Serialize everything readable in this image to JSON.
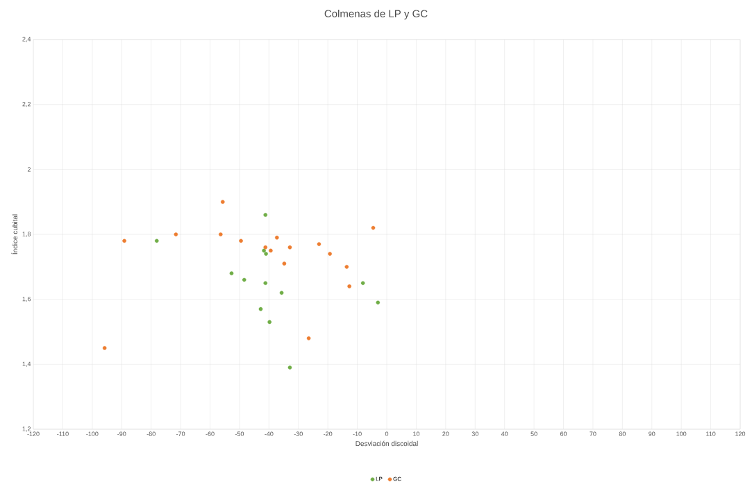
{
  "chart_data": {
    "type": "scatter",
    "title": "Colmenas de LP y GC",
    "xlabel": "Desviación discoidal",
    "ylabel": "Índice cubital",
    "xlim": [
      -120,
      120
    ],
    "ylim": [
      1.2,
      2.4
    ],
    "xticks": [
      -120,
      -110,
      -100,
      -90,
      -80,
      -70,
      -60,
      -50,
      -40,
      -30,
      -20,
      -10,
      0,
      10,
      20,
      30,
      40,
      50,
      60,
      70,
      80,
      90,
      100,
      110,
      120
    ],
    "yticks": [
      {
        "value": 1.2,
        "label": "1,2"
      },
      {
        "value": 1.4,
        "label": "1,4"
      },
      {
        "value": 1.6,
        "label": "1,6"
      },
      {
        "value": 1.8,
        "label": "1,8"
      },
      {
        "value": 2,
        "label": "2"
      },
      {
        "value": 2.2,
        "label": "2,2"
      },
      {
        "value": 2.4,
        "label": "2,4"
      }
    ],
    "grid": true,
    "legend": "bottom",
    "marker": "circle",
    "series": [
      {
        "name": "LP",
        "color": "#70ad47",
        "x": [
          -78.1,
          -41.2,
          -41.7,
          -41.0,
          -52.7,
          -48.4,
          -41.2,
          -35.7,
          -42.8,
          -39.8,
          -32.9,
          -8.1,
          -3.0
        ],
        "values": [
          1.78,
          1.86,
          1.75,
          1.74,
          1.68,
          1.66,
          1.65,
          1.62,
          1.57,
          1.53,
          1.39,
          1.65,
          1.59
        ]
      },
      {
        "name": "GC",
        "color": "#ed7d31",
        "x": [
          -55.7,
          -89.1,
          -71.6,
          -56.4,
          -49.5,
          -41.2,
          -39.4,
          -37.3,
          -32.9,
          -34.8,
          -23.0,
          -19.3,
          -13.6,
          -12.7,
          -4.6,
          -26.5,
          -95.8
        ],
        "values": [
          1.9,
          1.78,
          1.8,
          1.8,
          1.78,
          1.76,
          1.75,
          1.79,
          1.76,
          1.71,
          1.77,
          1.74,
          1.7,
          1.64,
          1.82,
          1.48,
          1.45
        ]
      }
    ]
  }
}
